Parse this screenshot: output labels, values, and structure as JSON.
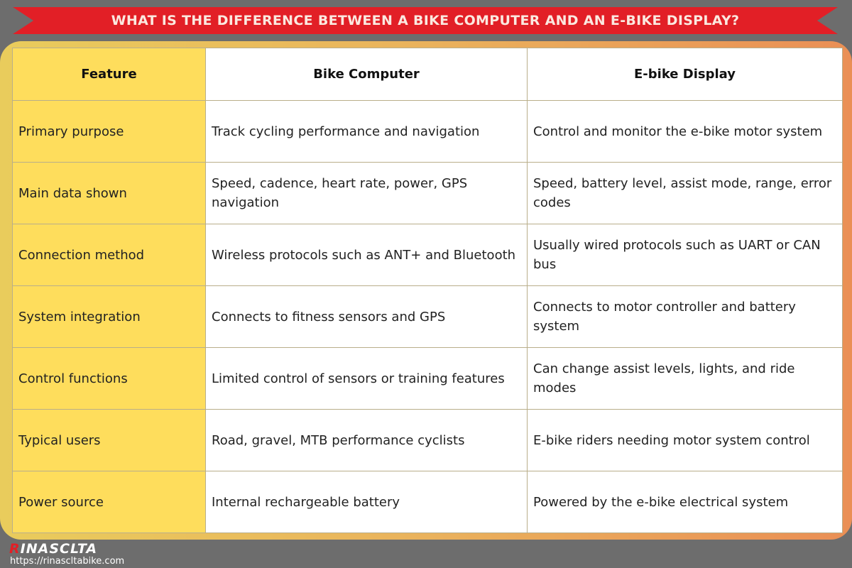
{
  "title": "WHAT IS THE DIFFERENCE BETWEEN A BIKE COMPUTER AND AN E-BIKE DISPLAY?",
  "table": {
    "headers": [
      "Feature",
      "Bike Computer",
      "E-bike Display"
    ],
    "rows": [
      [
        "Primary purpose",
        "Track cycling performance and navigation",
        "Control and monitor the e-bike motor system"
      ],
      [
        "Main data shown",
        "Speed, cadence, heart rate, power, GPS navigation",
        "Speed, battery level, assist mode, range, error codes"
      ],
      [
        "Connection method",
        "Wireless protocols such as ANT+ and Bluetooth",
        "Usually wired protocols such as UART or CAN bus"
      ],
      [
        "System integration",
        "Connects to fitness sensors and GPS",
        "Connects to motor controller and battery system"
      ],
      [
        "Control functions",
        "Limited control of sensors or training features",
        "Can change assist levels, lights, and ride modes"
      ],
      [
        "Typical users",
        "Road, gravel, MTB performance cyclists",
        "E-bike riders needing motor system control"
      ],
      [
        "Power source",
        "Internal rechargeable battery",
        "Powered by the e-bike electrical system"
      ]
    ]
  },
  "logo": {
    "first": "R",
    "rest": "INASCLTA"
  },
  "url": "https://rinascltabike.com",
  "colors": {
    "banner": "#e21f26",
    "feature_column": "#fedd5c",
    "background": "#6d6d6d"
  }
}
